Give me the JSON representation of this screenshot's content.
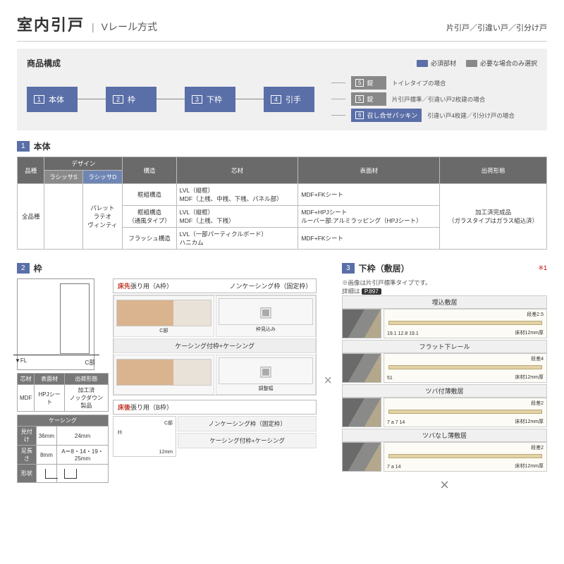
{
  "header": {
    "main": "室内引戸",
    "sub": "Vレール方式",
    "right": "片引戸／引違い戸／引分け戸"
  },
  "composition": {
    "title": "商品構成",
    "legend_required": "必須部材",
    "legend_optional": "必要な場合のみ選択",
    "color_required": "#5a6fa8",
    "color_optional": "#888888",
    "nodes": [
      {
        "n": "1",
        "t": "本体"
      },
      {
        "n": "2",
        "t": "枠"
      },
      {
        "n": "3",
        "t": "下枠"
      },
      {
        "n": "4",
        "t": "引手"
      }
    ],
    "branches": [
      {
        "num": "5",
        "label": "錠",
        "kind": "gray",
        "note": "トイレタイプの場合"
      },
      {
        "num": "5",
        "label": "錠",
        "kind": "gray",
        "note": "片引戸標準／引違い戸2枚建の場合"
      },
      {
        "num": "6",
        "label": "召し合せパッキン",
        "kind": "blue",
        "note": "引違い戸4枚建／引分け戸の場合"
      }
    ]
  },
  "sec1": {
    "num": "1",
    "title": "本体",
    "headers": {
      "hinshu": "品種",
      "design": "デザイン",
      "sub_s": "ラシッサS",
      "sub_d": "ラシッサD",
      "kozou": "構造",
      "shinzai": "芯材",
      "hyomen": "表面材",
      "shukka": "出荷形態"
    },
    "hinshu_val": "全品種",
    "designs": "パレット\nラテオ\nヴィンティ",
    "rows": [
      {
        "kozou": "框組構造",
        "shinzai": "LVL（縦框）\nMDF（上桟、中桟、下桟、パネル部）",
        "hyomen": "MDF+FKシート"
      },
      {
        "kozou": "框組構造\n（通風タイプ）",
        "shinzai": "LVL（縦框）\nMDF（上桟、下桟）",
        "hyomen": "MDF+HPJシート\nルーバー部:アルミラッピング（HPJシート）"
      },
      {
        "kozou": "フラッシュ構造",
        "shinzai": "LVL（一部パーティクルボード）\nハニカム",
        "hyomen": "MDF+FKシート"
      }
    ],
    "shukka_val": "加工済完成品\n（ガラスタイプはガラス組込済）"
  },
  "sec2": {
    "num": "2",
    "title": "枠",
    "fl": "▼FL",
    "cpart": "C部",
    "hmark": "H",
    "mat_table": {
      "h1": "芯材",
      "h2": "表面材",
      "h3": "出荷形態",
      "v1": "MDF",
      "v2": "HPJシート",
      "v3": "加工済\nノックダウン製品"
    },
    "casing_table": {
      "title": "ケーシング",
      "r1": "見付け",
      "v1a": "36mm",
      "v1b": "24mm",
      "r2": "足長さ",
      "v2a": "8mm",
      "v2b": "A＝8・14・19・25mm",
      "r3": "形状"
    },
    "frameA": {
      "head_lab": "床先",
      "head_txt": "張り用（A枠）",
      "col1": "ノンケーシング枠（固定枠）",
      "col2_1": "枠見込み",
      "col2_2": "調整幅",
      "row2": "ケーシング付枠+ケーシング",
      "cpart": "C部",
      "dim": "12mm"
    },
    "frameB": {
      "head_lab": "床後",
      "head_txt": "張り用（B枠）",
      "row1": "ノンケーシング枠（固定枠）",
      "row2": "ケーシング付枠+ケーシング",
      "cpart": "C部",
      "dim": "12mm"
    }
  },
  "sec3": {
    "num": "3",
    "title": "下枠（敷居）",
    "star": "※1",
    "note1": "※画像は片引戸標準タイプです。",
    "note2_pre": "詳細は",
    "note2_badge": "P.897",
    "items": [
      {
        "title": "埋込敷居",
        "step": "段差2.5",
        "dims": "19.1  12.8  19.1",
        "bottom": "床材12mm厚"
      },
      {
        "title": "フラット下レール",
        "step": "段差4",
        "dims": "51",
        "bottom": "床材12mm厚"
      },
      {
        "title": "ツバ付薄敷居",
        "step": "段差2",
        "dims": "7  a  7  14",
        "bottom": "床材12mm厚"
      },
      {
        "title": "ツバなし薄敷居",
        "step": "段差2",
        "dims": "7  a  14",
        "bottom": "床材12mm厚"
      }
    ]
  }
}
